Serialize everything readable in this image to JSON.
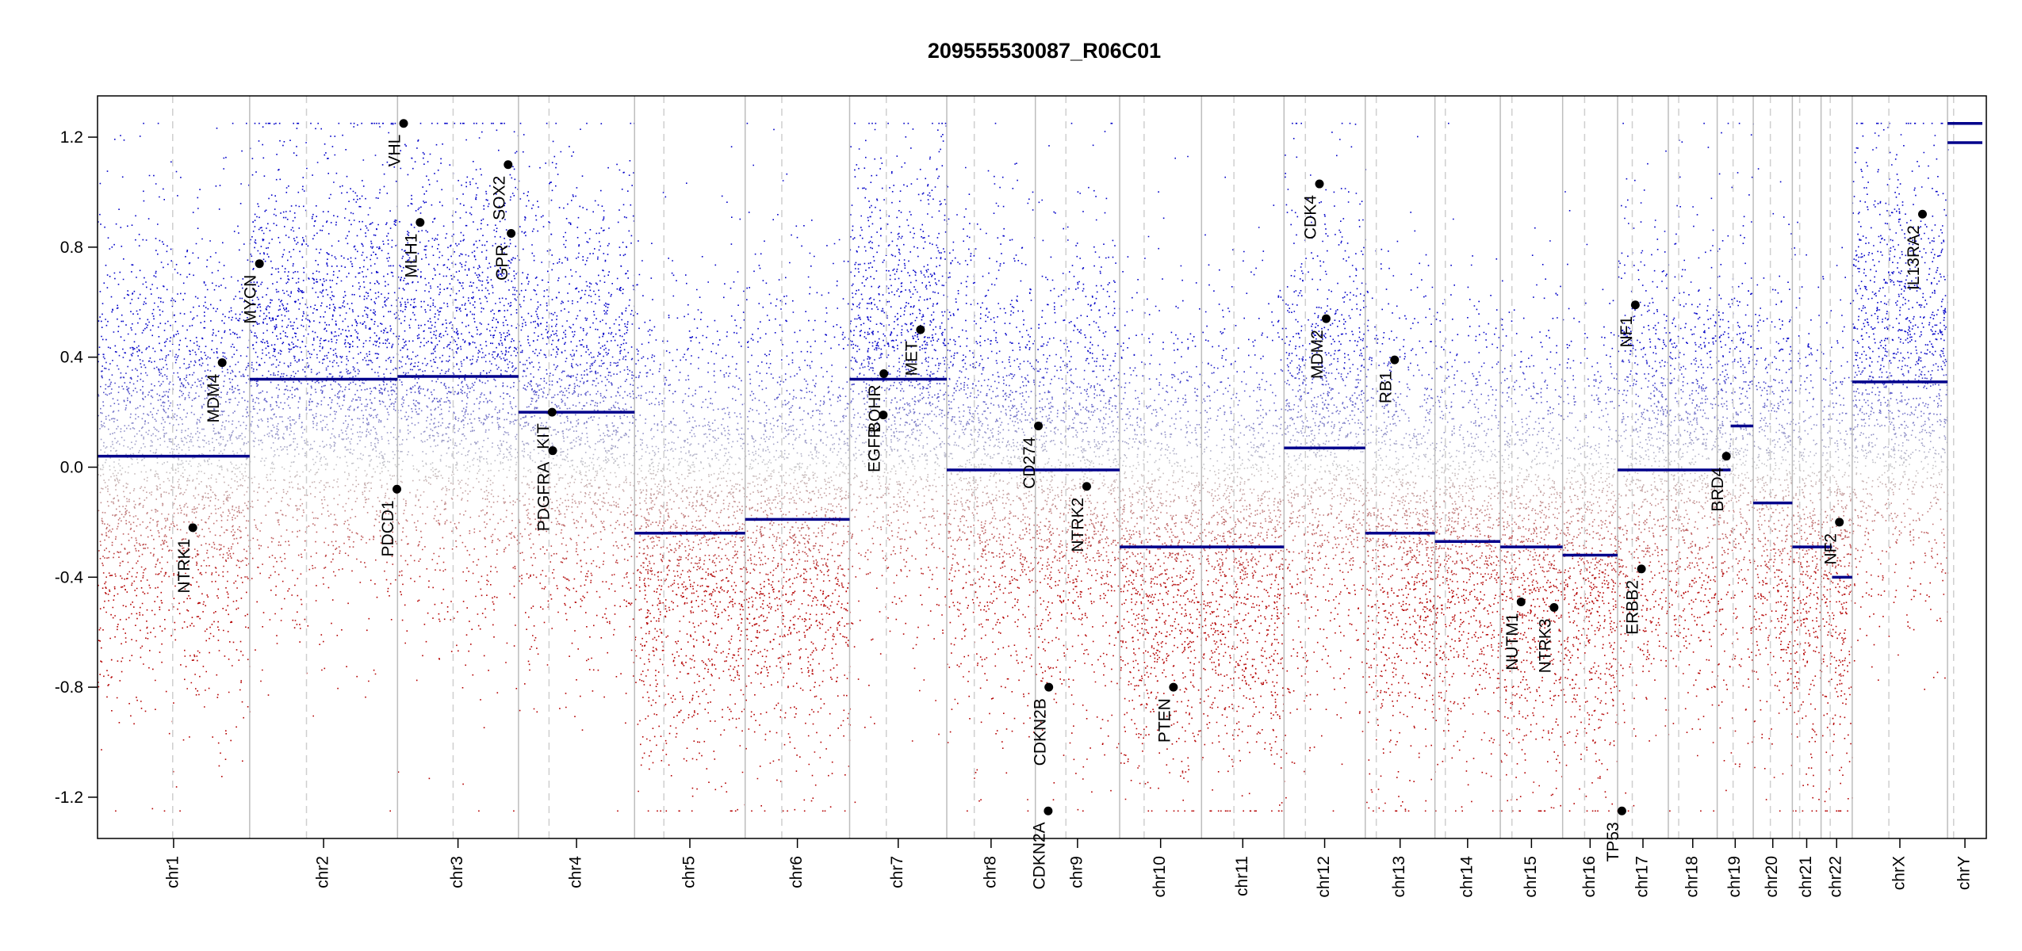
{
  "chart_data": {
    "type": "scatter",
    "title": "209555530087_R06C01",
    "xlabel": "",
    "ylabel": "",
    "ylim": [
      -1.35,
      1.35
    ],
    "y_ticks": [
      {
        "value": 1.2,
        "label": "1.2"
      },
      {
        "value": 0.8,
        "label": "0.8"
      },
      {
        "value": 0.4,
        "label": "0.4"
      },
      {
        "value": 0.0,
        "label": "0.0"
      },
      {
        "value": -0.4,
        "label": "-0.4"
      },
      {
        "value": -0.8,
        "label": "-0.8"
      },
      {
        "value": -1.2,
        "label": "-1.2"
      }
    ],
    "grid": false,
    "colors": {
      "gain": "#0000c8",
      "neutral": "#c8c8c8",
      "loss": "#b40000",
      "segment": "#00008b",
      "separator": "#bdbdbd",
      "gene_point": "#000000"
    },
    "chromosomes": [
      {
        "name": "chr1",
        "label": "chr1",
        "length": 249,
        "centromere": 123
      },
      {
        "name": "chr2",
        "label": "chr2",
        "length": 242,
        "centromere": 93
      },
      {
        "name": "chr3",
        "label": "chr3",
        "length": 198,
        "centromere": 91
      },
      {
        "name": "chr4",
        "label": "chr4",
        "length": 190,
        "centromere": 50
      },
      {
        "name": "chr5",
        "label": "chr5",
        "length": 181,
        "centromere": 48
      },
      {
        "name": "chr6",
        "label": "chr6",
        "length": 171,
        "centromere": 60
      },
      {
        "name": "chr7",
        "label": "chr7",
        "length": 159,
        "centromere": 60
      },
      {
        "name": "chr8",
        "label": "chr8",
        "length": 145,
        "centromere": 45
      },
      {
        "name": "chr9",
        "label": "chr9",
        "length": 138,
        "centromere": 50
      },
      {
        "name": "chr10",
        "label": "chr10",
        "length": 134,
        "centromere": 40
      },
      {
        "name": "chr11",
        "label": "chr11",
        "length": 135,
        "centromere": 53
      },
      {
        "name": "chr12",
        "label": "chr12",
        "length": 133,
        "centromere": 35
      },
      {
        "name": "chr13",
        "label": "chr13",
        "length": 114,
        "centromere": 18
      },
      {
        "name": "chr14",
        "label": "chr14",
        "length": 107,
        "centromere": 17
      },
      {
        "name": "chr15",
        "label": "chr15",
        "length": 102,
        "centromere": 19
      },
      {
        "name": "chr16",
        "label": "chr16",
        "length": 90,
        "centromere": 36
      },
      {
        "name": "chr17",
        "label": "chr17",
        "length": 83,
        "centromere": 24
      },
      {
        "name": "chr18",
        "label": "chr18",
        "length": 80,
        "centromere": 17
      },
      {
        "name": "chr19",
        "label": "chr19",
        "length": 59,
        "centromere": 26
      },
      {
        "name": "chr20",
        "label": "chr20",
        "length": 64,
        "centromere": 28
      },
      {
        "name": "chr21",
        "label": "chr21",
        "length": 47,
        "centromere": 12
      },
      {
        "name": "chr22",
        "label": "chr22",
        "length": 51,
        "centromere": 15
      },
      {
        "name": "chrX",
        "label": "chrX",
        "length": 156,
        "centromere": 60
      },
      {
        "name": "chrY",
        "label": "chrY",
        "length": 57,
        "centromere": 10
      }
    ],
    "segments": [
      {
        "chrom": "chr1",
        "start": 0,
        "end": 249,
        "value": 0.04
      },
      {
        "chrom": "chr2",
        "start": 0,
        "end": 242,
        "value": 0.32
      },
      {
        "chrom": "chr3",
        "start": 0,
        "end": 198,
        "value": 0.33
      },
      {
        "chrom": "chr4",
        "start": 0,
        "end": 190,
        "value": 0.2
      },
      {
        "chrom": "chr5",
        "start": 0,
        "end": 181,
        "value": -0.24
      },
      {
        "chrom": "chr6",
        "start": 0,
        "end": 171,
        "value": -0.19
      },
      {
        "chrom": "chr7",
        "start": 0,
        "end": 159,
        "value": 0.32
      },
      {
        "chrom": "chr8",
        "start": 0,
        "end": 145,
        "value": -0.01
      },
      {
        "chrom": "chr9",
        "start": 0,
        "end": 138,
        "value": -0.01
      },
      {
        "chrom": "chr10",
        "start": 0,
        "end": 134,
        "value": -0.29
      },
      {
        "chrom": "chr11",
        "start": 0,
        "end": 135,
        "value": -0.29
      },
      {
        "chrom": "chr12",
        "start": 0,
        "end": 133,
        "value": 0.07
      },
      {
        "chrom": "chr13",
        "start": 0,
        "end": 114,
        "value": -0.24
      },
      {
        "chrom": "chr14",
        "start": 0,
        "end": 107,
        "value": -0.27
      },
      {
        "chrom": "chr15",
        "start": 0,
        "end": 102,
        "value": -0.29
      },
      {
        "chrom": "chr16",
        "start": 0,
        "end": 90,
        "value": -0.32
      },
      {
        "chrom": "chr17",
        "start": 0,
        "end": 83,
        "value": -0.01
      },
      {
        "chrom": "chr18",
        "start": 0,
        "end": 80,
        "value": -0.01
      },
      {
        "chrom": "chr19",
        "start": 0,
        "end": 22,
        "value": -0.01
      },
      {
        "chrom": "chr19",
        "start": 22,
        "end": 59,
        "value": 0.15
      },
      {
        "chrom": "chr20",
        "start": 0,
        "end": 64,
        "value": -0.13
      },
      {
        "chrom": "chr21",
        "start": 0,
        "end": 47,
        "value": -0.29
      },
      {
        "chrom": "chr22",
        "start": 0,
        "end": 18,
        "value": -0.29
      },
      {
        "chrom": "chr22",
        "start": 18,
        "end": 51,
        "value": -0.4
      },
      {
        "chrom": "chrX",
        "start": 0,
        "end": 156,
        "value": 0.31
      },
      {
        "chrom": "chrY",
        "start": 0,
        "end": 57,
        "value": 1.25
      },
      {
        "chrom": "chrY",
        "start": 0,
        "end": 57,
        "value": 1.18
      }
    ],
    "genes": [
      {
        "label": "NTRK1",
        "chrom": "chr1",
        "pos": 156,
        "value": -0.22
      },
      {
        "label": "MDM4",
        "chrom": "chr1",
        "pos": 204,
        "value": 0.38
      },
      {
        "label": "MYCN",
        "chrom": "chr2",
        "pos": 16,
        "value": 0.74
      },
      {
        "label": "PDCD1",
        "chrom": "chr2",
        "pos": 241,
        "value": -0.08
      },
      {
        "label": "VHL",
        "chrom": "chr3",
        "pos": 10,
        "value": 1.25
      },
      {
        "label": "MLH1",
        "chrom": "chr3",
        "pos": 37,
        "value": 0.89
      },
      {
        "label": "SOX2",
        "chrom": "chr3",
        "pos": 181,
        "value": 1.1
      },
      {
        "label": "GPR",
        "chrom": "chr3",
        "pos": 186,
        "value": 0.85
      },
      {
        "label": "KIT",
        "chrom": "chr4",
        "pos": 55,
        "value": 0.2
      },
      {
        "label": "PDGFRA",
        "chrom": "chr4",
        "pos": 56,
        "value": 0.06
      },
      {
        "label": "EGFR",
        "chrom": "chr7",
        "pos": 55,
        "value": 0.19
      },
      {
        "label": "BOHR",
        "chrom": "chr7",
        "pos": 56,
        "value": 0.34
      },
      {
        "label": "MET",
        "chrom": "chr7",
        "pos": 116,
        "value": 0.5
      },
      {
        "label": "CD274",
        "chrom": "chr9",
        "pos": 5,
        "value": 0.15
      },
      {
        "label": "CDKN2A",
        "chrom": "chr9",
        "pos": 21,
        "value": -1.25
      },
      {
        "label": "CDKN2B",
        "chrom": "chr9",
        "pos": 22,
        "value": -0.8
      },
      {
        "label": "NTRK2",
        "chrom": "chr9",
        "pos": 84,
        "value": -0.07
      },
      {
        "label": "PTEN",
        "chrom": "chr10",
        "pos": 88,
        "value": -0.8
      },
      {
        "label": "MDM2",
        "chrom": "chr12",
        "pos": 69,
        "value": 0.54
      },
      {
        "label": "CDK4",
        "chrom": "chr12",
        "pos": 58,
        "value": 1.03
      },
      {
        "label": "RB1",
        "chrom": "chr13",
        "pos": 48,
        "value": 0.39
      },
      {
        "label": "NUTM1",
        "chrom": "chr15",
        "pos": 34,
        "value": -0.49
      },
      {
        "label": "NTRK3",
        "chrom": "chr15",
        "pos": 88,
        "value": -0.51
      },
      {
        "label": "TP53",
        "chrom": "chr17",
        "pos": 7,
        "value": -1.25
      },
      {
        "label": "NF1",
        "chrom": "chr17",
        "pos": 29,
        "value": 0.59
      },
      {
        "label": "ERBB2",
        "chrom": "chr17",
        "pos": 39,
        "value": -0.37
      },
      {
        "label": "BRD4",
        "chrom": "chr19",
        "pos": 15,
        "value": 0.04
      },
      {
        "label": "NF2",
        "chrom": "chr22",
        "pos": 30,
        "value": -0.2
      },
      {
        "label": "IL13RA2",
        "chrom": "chrX",
        "pos": 115,
        "value": 0.92
      }
    ]
  }
}
